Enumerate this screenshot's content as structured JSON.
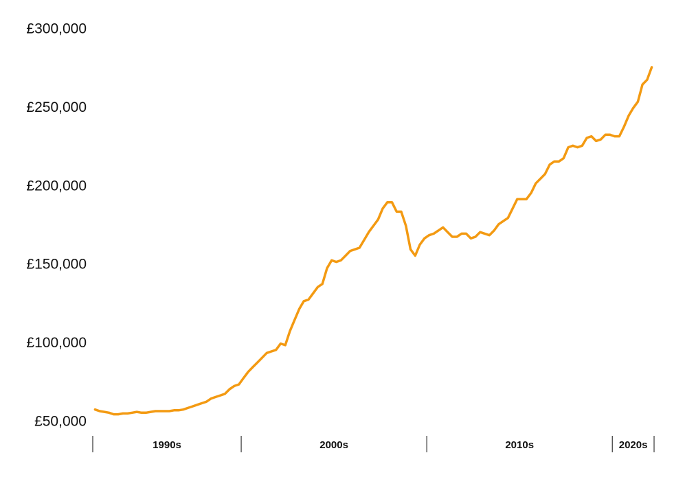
{
  "chart_data": {
    "type": "line",
    "color": "#f39a12",
    "categories": [
      "1990s",
      "2000s",
      "2010s",
      "2020s"
    ],
    "values": [
      [
        58000,
        57000,
        56500,
        56000,
        55000,
        55000,
        55500,
        55500,
        56000,
        56500,
        56000,
        56000,
        56500,
        57000,
        57000,
        57000,
        57000,
        57500,
        57500,
        58000,
        59000,
        60000,
        61000,
        62000,
        63000,
        65000,
        66000,
        67000,
        68000,
        71000,
        73000,
        74000
      ],
      [
        78000,
        82000,
        85000,
        88000,
        91000,
        94000,
        95000,
        96000,
        100000,
        99000,
        108000,
        115000,
        122000,
        127000,
        128000,
        132000,
        136000,
        138000,
        148000,
        153000,
        152000,
        153000,
        156000,
        159000,
        160000,
        161000,
        166000,
        171000,
        175000,
        179000,
        186000,
        190000,
        190000,
        184000,
        184000,
        175000,
        160000,
        156000,
        163000,
        167000
      ],
      [
        169000,
        170000,
        172000,
        174000,
        171000,
        168000,
        168000,
        170000,
        170000,
        167000,
        168000,
        171000,
        170000,
        169000,
        172000,
        176000,
        178000,
        180000,
        186000,
        192000,
        192000,
        192000,
        196000,
        202000,
        205000,
        208000,
        214000,
        216000,
        216000,
        218000,
        225000,
        226000,
        225000,
        226000,
        231000,
        232000,
        229000,
        230000,
        233000,
        233000
      ],
      [
        232000,
        232000,
        238000,
        245000,
        250000,
        254000,
        265000,
        268000,
        276000
      ]
    ],
    "ylim": [
      50000,
      300000
    ],
    "yticks": [
      {
        "value": 50000,
        "label": "£50,000"
      },
      {
        "value": 100000,
        "label": "£100,000"
      },
      {
        "value": 150000,
        "label": "£150,000"
      },
      {
        "value": 200000,
        "label": "£200,000"
      },
      {
        "value": 250000,
        "label": "£250,000"
      },
      {
        "value": 300000,
        "label": "£300,000"
      }
    ]
  }
}
